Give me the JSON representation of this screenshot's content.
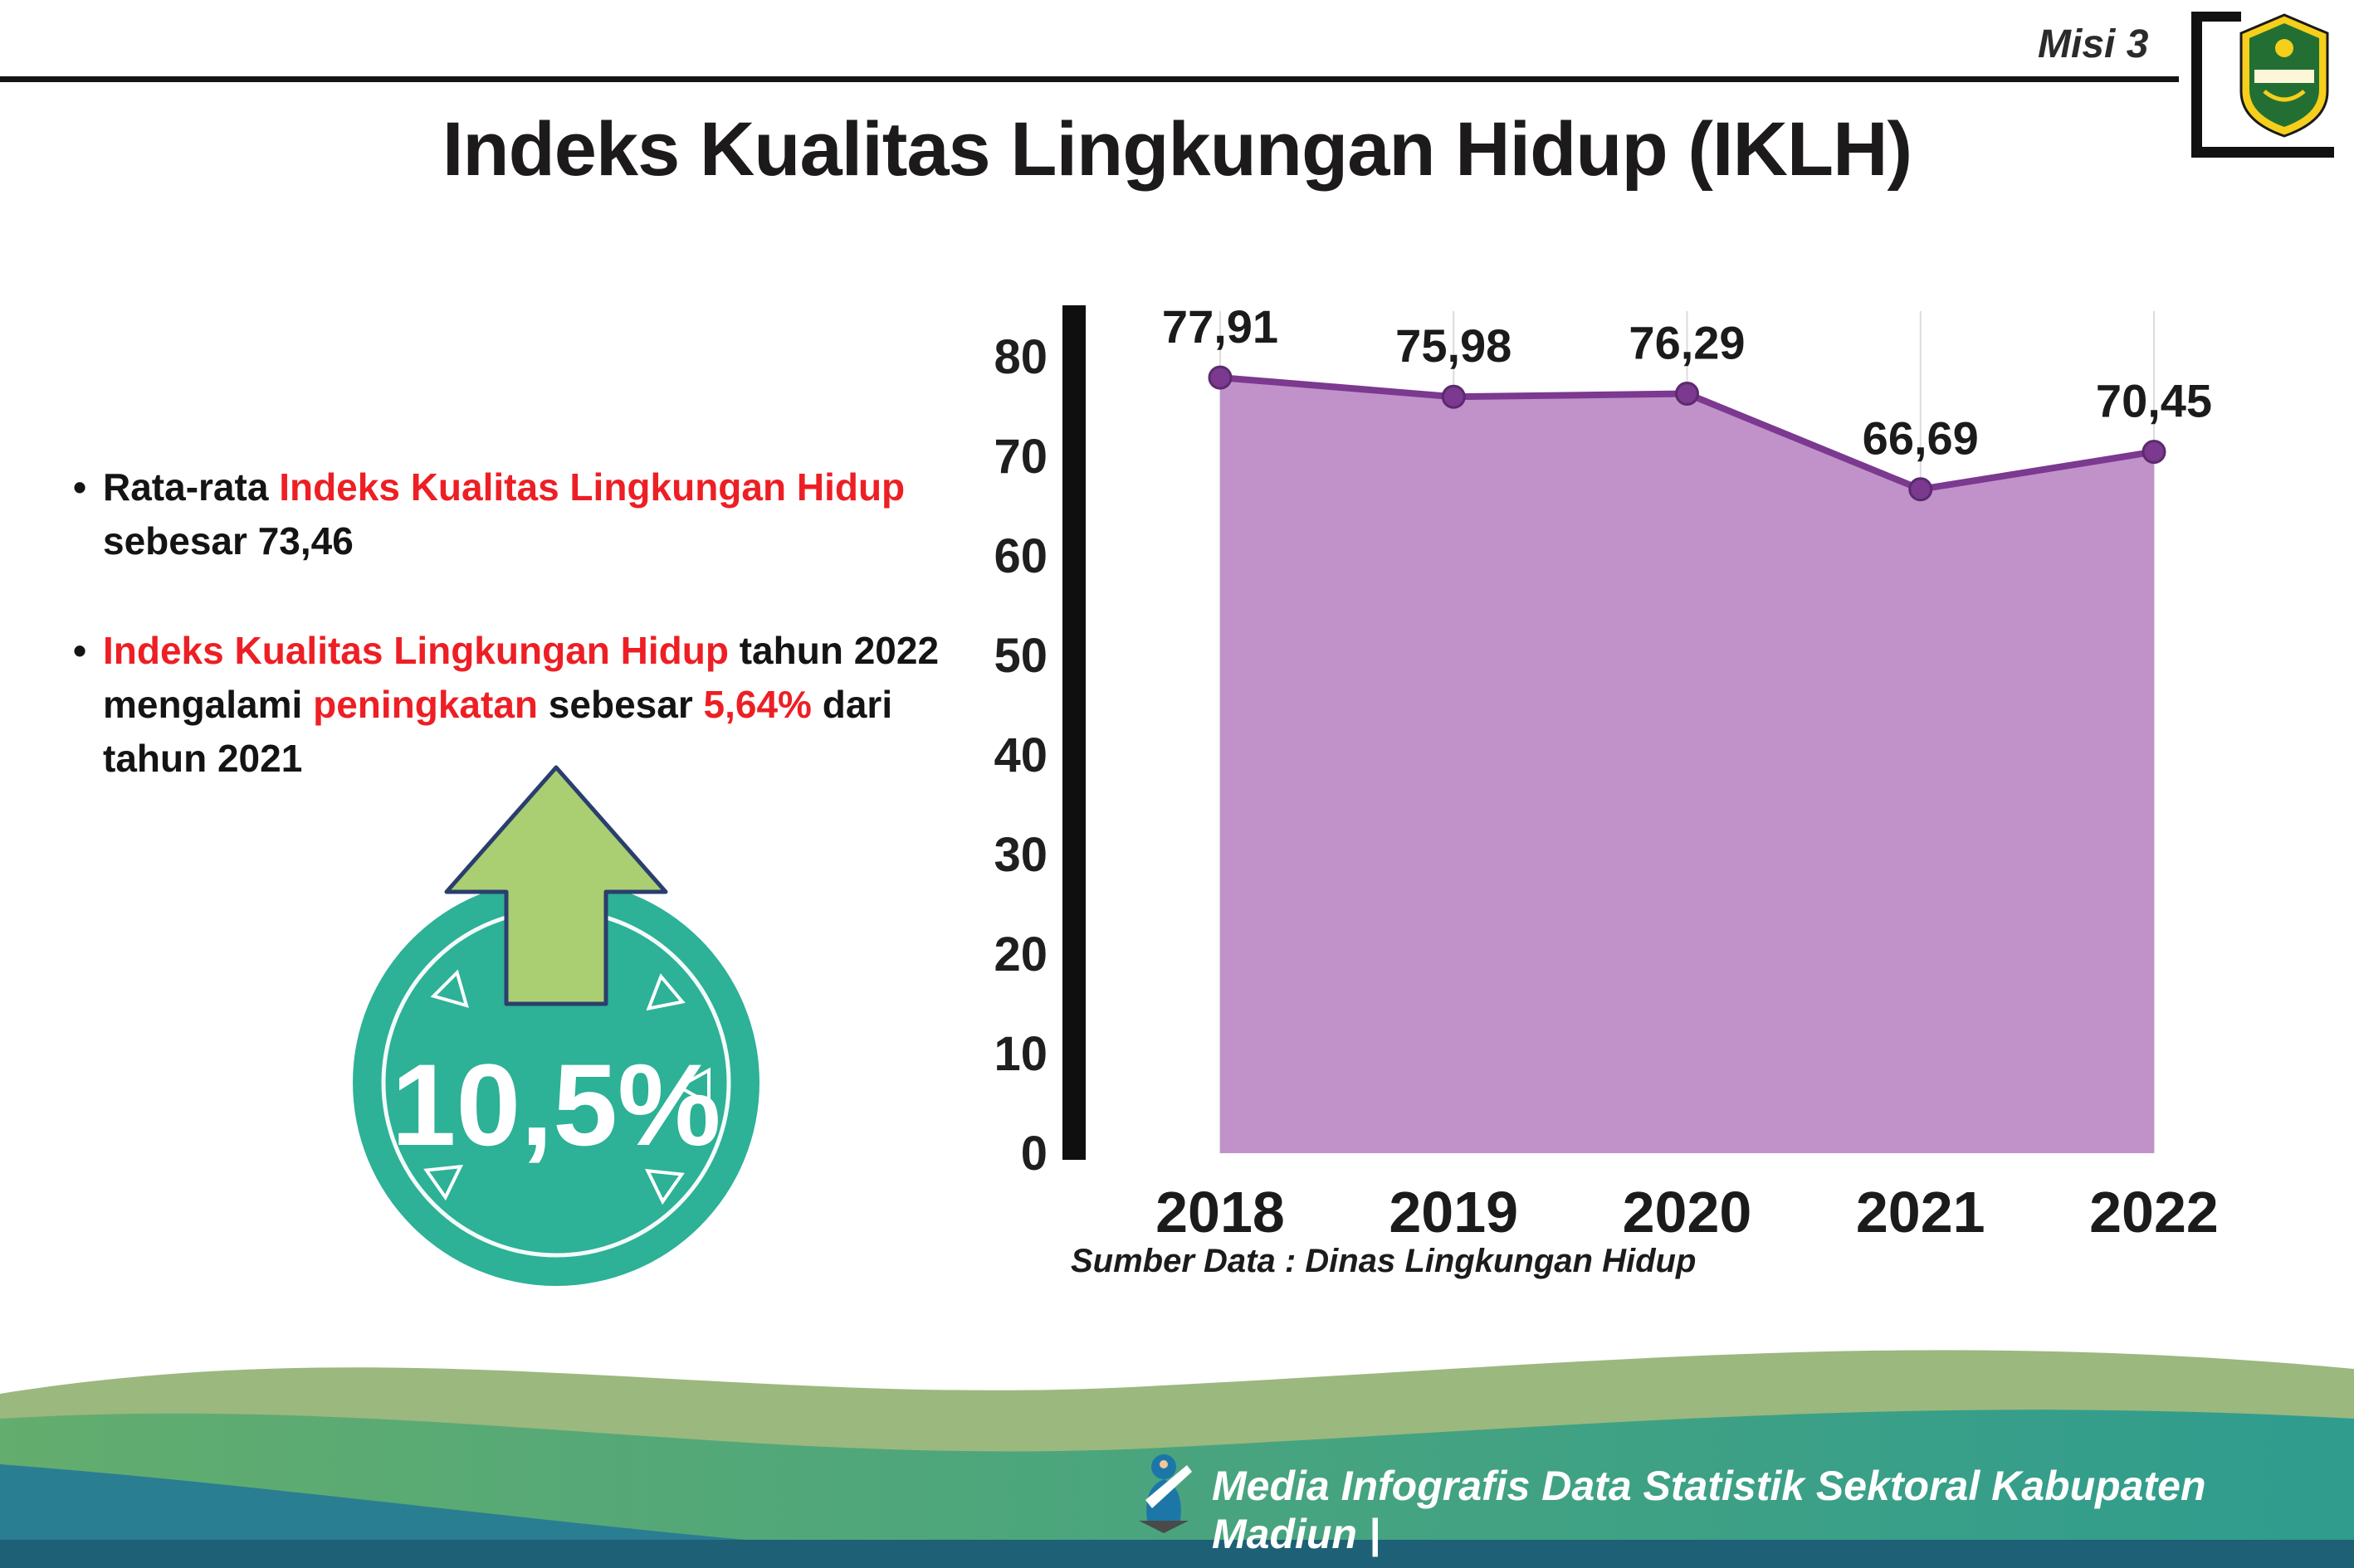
{
  "header": {
    "misi": "Misi 3",
    "title": "Indeks Kualitas Lingkungan Hidup (IKLH)"
  },
  "bullets": {
    "marker": "•",
    "item1": {
      "segments": [
        {
          "text": "Rata-rata ",
          "red": false
        },
        {
          "text": "Indeks Kualitas Lingkungan Hidup",
          "red": true
        },
        {
          "text": " sebesar 73,46",
          "red": false
        }
      ]
    },
    "item2": {
      "segments": [
        {
          "text": "Indeks Kualitas Lingkungan Hidup",
          "red": true
        },
        {
          "text": " tahun 2022 mengalami ",
          "red": false
        },
        {
          "text": "peningkatan",
          "red": true
        },
        {
          "text": " sebesar ",
          "red": false
        },
        {
          "text": "5,64%",
          "red": true
        },
        {
          "text": " dari tahun 2021",
          "red": false
        }
      ]
    }
  },
  "badge": {
    "value": "10,5%",
    "circle_color": "#2db197",
    "arrow_color": "#a9cf72"
  },
  "chart_data": {
    "type": "area",
    "title": "",
    "categories": [
      "2018",
      "2019",
      "2020",
      "2021",
      "2022"
    ],
    "values": [
      77.91,
      75.98,
      76.29,
      66.69,
      70.45
    ],
    "value_labels": [
      "77,91",
      "75,98",
      "76,29",
      "66,69",
      "70,45"
    ],
    "xlabel": "",
    "ylabel": "",
    "ylim": [
      0,
      80
    ],
    "yticks": [
      0,
      10,
      20,
      30,
      40,
      50,
      60,
      70,
      80
    ],
    "grid": "vertical-light",
    "legend": "none",
    "line_color": "#7b3990",
    "fill_color": "#c192ca",
    "marker_color": "#5c2a6e",
    "source": "Sumber Data : Dinas Lingkungan Hidup"
  },
  "footer": {
    "credit": "Media Infografis Data Statistik Sektoral Kabupaten Madiun |"
  },
  "colors": {
    "accent_red": "#ed1f24",
    "axis_black": "#0f0f0f",
    "footer_back_wave": "#9bb87e",
    "footer_front_wave_start": "#63ad6e",
    "footer_front_wave_end": "#2f9c8e",
    "footer_dark_wave": "#2a7e92",
    "footer_strip": "#1e6076"
  }
}
